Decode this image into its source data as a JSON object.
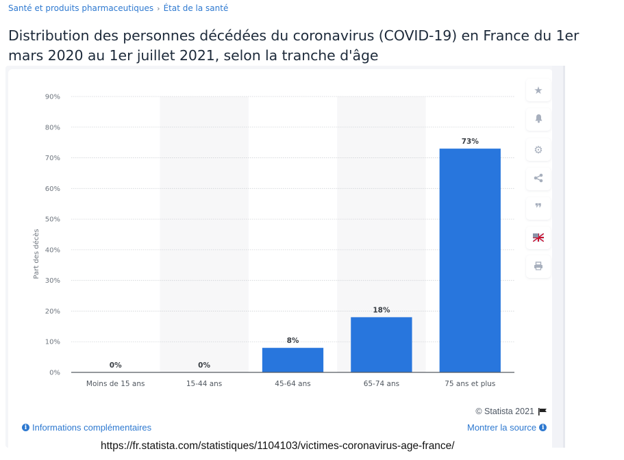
{
  "breadcrumb": {
    "items": [
      "Santé et produits pharmaceutiques",
      "État de la santé"
    ],
    "separator": "›"
  },
  "header": {
    "title": "Distribution des personnes décédées du coronavirus (COVID-19) en France du 1er mars 2020 au 1er juillet 2021, selon la tranche d'âge"
  },
  "toolbar": {
    "items": [
      {
        "name": "favorite",
        "icon": "star-icon",
        "glyph": "★"
      },
      {
        "name": "notification",
        "icon": "bell-icon",
        "glyph": "🔔"
      },
      {
        "name": "settings",
        "icon": "gear-icon",
        "glyph": "⚙"
      },
      {
        "name": "share",
        "icon": "share-icon",
        "glyph": "<"
      },
      {
        "name": "cite",
        "icon": "quote-icon",
        "glyph": "❞"
      },
      {
        "name": "language",
        "icon": "uk-flag-icon",
        "glyph": ""
      },
      {
        "name": "print",
        "icon": "printer-icon",
        "glyph": "⎙"
      }
    ]
  },
  "footer": {
    "copyright": "© Statista 2021",
    "more_info_label": "Informations complémentaires",
    "show_source_label": "Montrer la source"
  },
  "caption_url": "https://fr.statista.com/statistiques/1104103/victimes-coronavirus-age-france/",
  "colors": {
    "bar": "#2876dd",
    "link": "#2e79d0",
    "title": "#1d2a3a"
  },
  "chart_data": {
    "type": "bar",
    "title": "Distribution des personnes décédées du coronavirus (COVID-19) en France du 1er mars 2020 au 1er juillet 2021, selon la tranche d'âge",
    "categories": [
      "Moins de 15 ans",
      "15-44 ans",
      "45-64 ans",
      "65-74 ans",
      "75 ans et plus"
    ],
    "values": [
      0,
      0,
      8,
      18,
      73
    ],
    "data_labels": [
      "0%",
      "0%",
      "8%",
      "18%",
      "73%"
    ],
    "xlabel": "",
    "ylabel": "Part des décès",
    "ylim": [
      0,
      90
    ],
    "yticks": [
      0,
      10,
      20,
      30,
      40,
      50,
      60,
      70,
      80,
      90
    ],
    "ytick_labels": [
      "0%",
      "10%",
      "20%",
      "30%",
      "40%",
      "50%",
      "60%",
      "70%",
      "80%",
      "90%"
    ],
    "grid": true,
    "legend": "none"
  }
}
